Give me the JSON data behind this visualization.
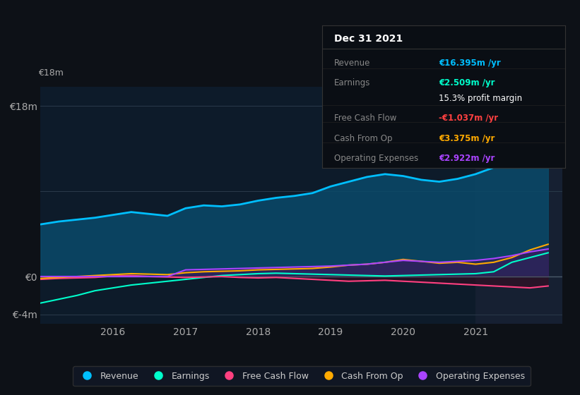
{
  "bg_color": "#0d1117",
  "plot_bg_color": "#0d1b2a",
  "highlight_bg": "#162032",
  "zero_line_color": "#4a5a6a",
  "years": [
    2015.0,
    2015.25,
    2015.5,
    2015.75,
    2016.0,
    2016.25,
    2016.5,
    2016.75,
    2017.0,
    2017.25,
    2017.5,
    2017.75,
    2018.0,
    2018.25,
    2018.5,
    2018.75,
    2019.0,
    2019.25,
    2019.5,
    2019.75,
    2020.0,
    2020.25,
    2020.5,
    2020.75,
    2021.0,
    2021.25,
    2021.5,
    2021.75,
    2022.0
  ],
  "revenue": [
    5.5,
    5.8,
    6.0,
    6.2,
    6.5,
    6.8,
    6.6,
    6.4,
    7.2,
    7.5,
    7.4,
    7.6,
    8.0,
    8.3,
    8.5,
    8.8,
    9.5,
    10.0,
    10.5,
    10.8,
    10.6,
    10.2,
    10.0,
    10.3,
    10.8,
    11.5,
    13.0,
    15.0,
    16.4
  ],
  "earnings": [
    -2.8,
    -2.4,
    -2.0,
    -1.5,
    -1.2,
    -0.9,
    -0.7,
    -0.5,
    -0.3,
    -0.1,
    0.1,
    0.2,
    0.3,
    0.35,
    0.3,
    0.25,
    0.2,
    0.15,
    0.1,
    0.05,
    0.1,
    0.15,
    0.2,
    0.25,
    0.3,
    0.5,
    1.5,
    2.0,
    2.5
  ],
  "free_cash_flow": [
    -0.3,
    -0.2,
    -0.15,
    -0.1,
    0.05,
    0.1,
    0.0,
    -0.05,
    -0.1,
    -0.05,
    0.0,
    -0.1,
    -0.15,
    -0.1,
    -0.2,
    -0.3,
    -0.4,
    -0.5,
    -0.45,
    -0.4,
    -0.5,
    -0.6,
    -0.7,
    -0.8,
    -0.9,
    -1.0,
    -1.1,
    -1.2,
    -1.0
  ],
  "cash_from_op": [
    -0.2,
    -0.1,
    0.0,
    0.1,
    0.2,
    0.3,
    0.25,
    0.2,
    0.4,
    0.5,
    0.55,
    0.6,
    0.7,
    0.75,
    0.8,
    0.85,
    1.0,
    1.2,
    1.3,
    1.5,
    1.8,
    1.6,
    1.4,
    1.5,
    1.3,
    1.5,
    2.0,
    2.8,
    3.4
  ],
  "operating_expenses": [
    0.0,
    0.0,
    0.0,
    0.0,
    0.0,
    0.0,
    0.0,
    0.0,
    0.7,
    0.75,
    0.8,
    0.85,
    0.9,
    0.95,
    1.0,
    1.05,
    1.1,
    1.2,
    1.3,
    1.5,
    1.7,
    1.6,
    1.5,
    1.6,
    1.7,
    1.9,
    2.2,
    2.6,
    2.9
  ],
  "revenue_color": "#00bfff",
  "earnings_color": "#00ffcc",
  "fcf_color": "#ff4080",
  "cashop_color": "#ffaa00",
  "opex_color": "#aa44ff",
  "revenue_fill": "#0a4a6a",
  "ylim_min": -5.0,
  "ylim_max": 20.0,
  "xlim_min": 2015.0,
  "xlim_max": 2022.2,
  "highlight_start": 2021.0,
  "highlight_end": 2022.2,
  "yticks": [
    -4,
    0,
    18
  ],
  "ytick_labels": [
    "€-4m",
    "€0",
    "€18m"
  ],
  "xtick_positions": [
    2016,
    2017,
    2018,
    2019,
    2020,
    2021
  ],
  "xtick_labels": [
    "2016",
    "2017",
    "2018",
    "2019",
    "2020",
    "2021"
  ],
  "legend_items": [
    "Revenue",
    "Earnings",
    "Free Cash Flow",
    "Cash From Op",
    "Operating Expenses"
  ],
  "legend_colors": [
    "#00bfff",
    "#00ffcc",
    "#ff4080",
    "#ffaa00",
    "#aa44ff"
  ],
  "tooltip_text": "Dec 31 2021",
  "tooltip_rows": [
    {
      "label": "Revenue",
      "value": "€16.395m /yr",
      "color": "#00bfff"
    },
    {
      "label": "Earnings",
      "value": "€2.509m /yr",
      "color": "#00ffcc"
    },
    {
      "label": "",
      "value": "15.3% profit margin",
      "color": "#ffffff"
    },
    {
      "label": "Free Cash Flow",
      "value": "-€1.037m /yr",
      "color": "#ff4040"
    },
    {
      "label": "Cash From Op",
      "value": "€3.375m /yr",
      "color": "#ffaa00"
    },
    {
      "label": "Operating Expenses",
      "value": "€2.922m /yr",
      "color": "#aa44ff"
    }
  ]
}
